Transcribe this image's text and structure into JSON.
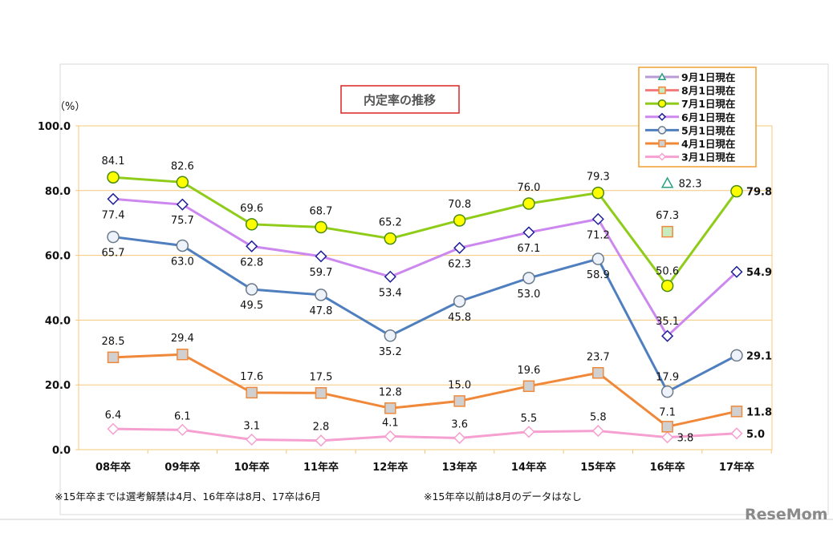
{
  "chart_data": {
    "type": "line",
    "title": "内定率の推移",
    "ylabel": "（%）",
    "xlabel": "",
    "ylim": [
      0,
      100
    ],
    "yticks": [
      "0.0",
      "20.0",
      "40.0",
      "60.0",
      "80.0",
      "100.0"
    ],
    "grid": true,
    "legend_position": "top-right",
    "categories": [
      "08年卒",
      "09年卒",
      "10年卒",
      "11年卒",
      "12年卒",
      "13年卒",
      "14年卒",
      "15年卒",
      "16年卒",
      "17年卒"
    ],
    "series": [
      {
        "name": "9月1日現在",
        "color": "#b79ad6",
        "marker": "triangle",
        "values": [
          null,
          null,
          null,
          null,
          null,
          null,
          null,
          null,
          82.3,
          null
        ]
      },
      {
        "name": "8月1日現在",
        "color": "#f27a7a",
        "marker": "square",
        "values": [
          null,
          null,
          null,
          null,
          null,
          null,
          null,
          null,
          67.3,
          null
        ]
      },
      {
        "name": "7月1日現在",
        "color": "#8fcc1a",
        "marker": "circle",
        "values": [
          84.1,
          82.6,
          69.6,
          68.7,
          65.2,
          70.8,
          76.0,
          79.3,
          50.6,
          79.8
        ]
      },
      {
        "name": "6月1日現在",
        "color": "#cc88ee",
        "marker": "diamond",
        "values": [
          77.4,
          75.7,
          62.8,
          59.7,
          53.4,
          62.3,
          67.1,
          71.2,
          35.1,
          54.9
        ]
      },
      {
        "name": "5月1日現在",
        "color": "#4f7fbf",
        "marker": "circle",
        "values": [
          65.7,
          63.0,
          49.5,
          47.8,
          35.2,
          45.8,
          53.0,
          58.9,
          17.9,
          29.1
        ]
      },
      {
        "name": "4月1日現在",
        "color": "#f0883a",
        "marker": "square",
        "values": [
          28.5,
          29.4,
          17.6,
          17.5,
          12.8,
          15.0,
          19.6,
          23.7,
          7.1,
          11.8
        ]
      },
      {
        "name": "3月1日現在",
        "color": "#f5a0d0",
        "marker": "diamond",
        "values": [
          6.4,
          6.1,
          3.1,
          2.8,
          4.1,
          3.6,
          5.5,
          5.8,
          3.8,
          5.0
        ]
      }
    ],
    "notes": [
      "※15年卒までは選考解禁は4月、16年卒は8月、17卒は6月",
      "※15年卒以前は8月のデータはなし"
    ]
  },
  "watermark": "ReseMom"
}
